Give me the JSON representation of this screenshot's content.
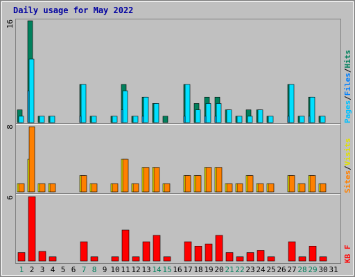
{
  "chart_data": {
    "type": "bar",
    "title": "Daily usage for May 2022",
    "days": [
      "1",
      "2",
      "3",
      "4",
      "5",
      "6",
      "7",
      "8",
      "9",
      "10",
      "11",
      "12",
      "13",
      "14",
      "15",
      "16",
      "17",
      "18",
      "19",
      "20",
      "21",
      "22",
      "23",
      "24",
      "25",
      "26",
      "27",
      "28",
      "29",
      "30",
      "31"
    ],
    "weekend_days": [
      "1",
      "7",
      "8",
      "14",
      "15",
      "21",
      "22",
      "28",
      "29"
    ],
    "panels": [
      {
        "name": "top",
        "ymax_label": "16",
        "ymax": 16,
        "legend": [
          "Pages",
          "Files",
          "Hits"
        ],
        "series": [
          {
            "name": "Hits",
            "color": "#00805c",
            "values": [
              2,
              16,
              1,
              1,
              0,
              0,
              6,
              1,
              0,
              1,
              6,
              1,
              4,
              3,
              1,
              0,
              6,
              3,
              4,
              4,
              2,
              1,
              2,
              2,
              1,
              0,
              6,
              1,
              4,
              1,
              0
            ]
          },
          {
            "name": "Files",
            "color": "#00e0ff",
            "values": [
              1,
              10,
              1,
              1,
              0,
              0,
              6,
              1,
              0,
              1,
              5,
              1,
              4,
              3,
              0,
              0,
              6,
              2,
              3,
              3,
              2,
              1,
              1,
              2,
              1,
              0,
              6,
              1,
              4,
              1,
              0
            ]
          },
          {
            "name": "Pages",
            "color": "#00c0ff",
            "values": [
              0,
              5,
              0,
              0,
              0,
              0,
              1,
              0,
              0,
              0,
              2,
              0,
              1,
              0,
              0,
              0,
              1,
              0,
              1,
              1,
              0,
              0,
              0,
              0,
              0,
              0,
              1,
              0,
              1,
              0,
              0
            ]
          }
        ]
      },
      {
        "name": "middle",
        "ymax_label": "8",
        "ymax": 8,
        "legend": [
          "Sites",
          "Visits"
        ],
        "series": [
          {
            "name": "Visits",
            "color": "#ffff00",
            "values": [
              1,
              4,
              1,
              1,
              0,
              0,
              2,
              1,
              0,
              1,
              4,
              1,
              3,
              3,
              1,
              0,
              2,
              2,
              3,
              3,
              1,
              1,
              2,
              1,
              1,
              0,
              2,
              1,
              2,
              1,
              0
            ]
          },
          {
            "name": "Sites",
            "color": "#ff8000",
            "values": [
              1,
              8,
              1,
              1,
              0,
              0,
              2,
              1,
              0,
              1,
              4,
              1,
              3,
              3,
              1,
              0,
              2,
              2,
              3,
              3,
              1,
              1,
              2,
              1,
              1,
              0,
              2,
              1,
              2,
              1,
              0
            ]
          }
        ]
      },
      {
        "name": "bottom",
        "ymax_label": "6",
        "ymax": 6,
        "legend": [
          "KB F"
        ],
        "series": [
          {
            "name": "KB F",
            "color": "#ff0000",
            "values": [
              0.8,
              6,
              0.9,
              0.4,
              0,
              0,
              1.8,
              0.4,
              0,
              0.4,
              2.9,
              0.4,
              1.8,
              2.4,
              0.4,
              0,
              1.8,
              1.4,
              1.6,
              2.4,
              0.8,
              0.4,
              0.8,
              1,
              0.4,
              0,
              1.8,
              0.4,
              1.4,
              0.4,
              0
            ]
          }
        ]
      }
    ]
  }
}
